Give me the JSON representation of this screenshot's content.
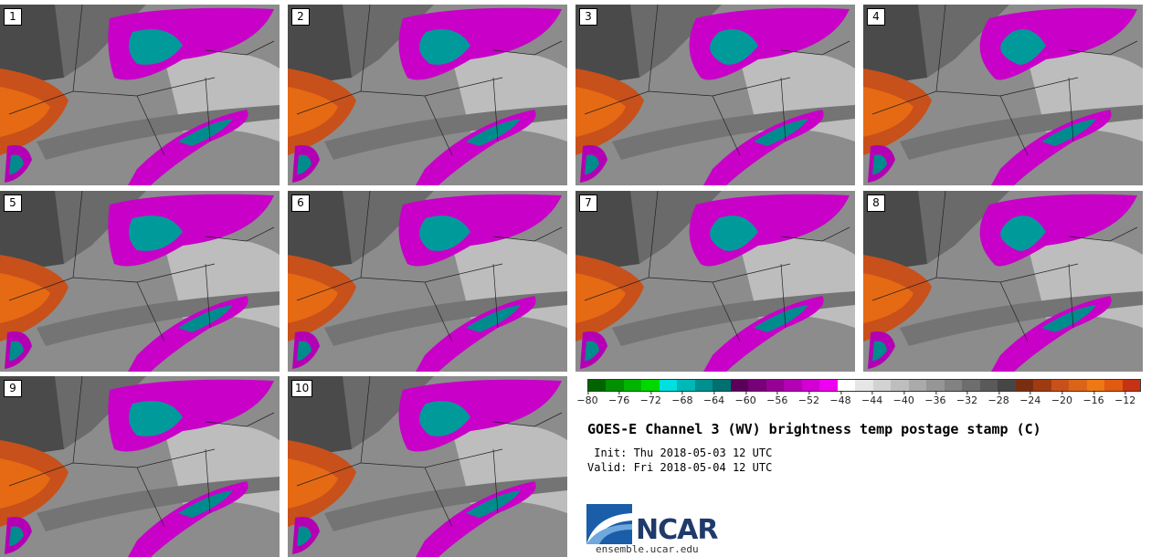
{
  "panels": [
    "1",
    "2",
    "3",
    "4",
    "5",
    "6",
    "7",
    "8",
    "9",
    "10"
  ],
  "colorbar": {
    "colors": [
      "#006400",
      "#009000",
      "#00b400",
      "#00d800",
      "#00e0e0",
      "#00b8b8",
      "#009090",
      "#007070",
      "#5a005a",
      "#780078",
      "#960096",
      "#b400b4",
      "#d200d2",
      "#f000f0",
      "#ffffff",
      "#e6e6e6",
      "#d2d2d2",
      "#bebebe",
      "#aaaaaa",
      "#969696",
      "#828282",
      "#6e6e6e",
      "#5a5a5a",
      "#464646",
      "#7a2e10",
      "#a03a10",
      "#c8501a",
      "#dc6418",
      "#f07814",
      "#e05a10",
      "#c83214"
    ],
    "ticks": [
      "−80",
      "−76",
      "−72",
      "−68",
      "−64",
      "−60",
      "−56",
      "−52",
      "−48",
      "−44",
      "−40",
      "−36",
      "−32",
      "−28",
      "−24",
      "−20",
      "−16",
      "−12"
    ],
    "tick_values": [
      -80,
      -76,
      -72,
      -68,
      -64,
      -60,
      -56,
      -52,
      -48,
      -44,
      -40,
      -36,
      -32,
      -28,
      -24,
      -20,
      -16,
      -12
    ],
    "range": [
      -80,
      -10
    ]
  },
  "title": "GOES-E Channel 3 (WV) brightness temp postage stamp (C)",
  "init": " Init: Thu 2018-05-03 12 UTC",
  "valid": "Valid: Fri 2018-05-04 12 UTC",
  "logo": {
    "name": "NCAR",
    "site": "ensemble.ucar.edu"
  }
}
